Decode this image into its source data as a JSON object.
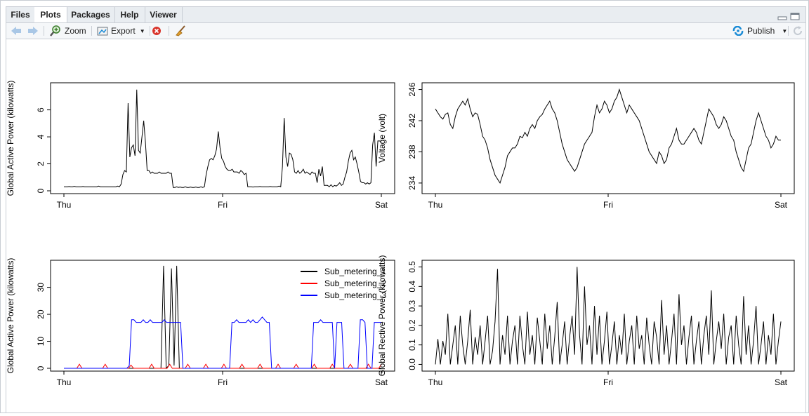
{
  "tabs": [
    {
      "label": "Files",
      "active": false
    },
    {
      "label": "Plots",
      "active": true
    },
    {
      "label": "Packages",
      "active": false
    },
    {
      "label": "Help",
      "active": false
    },
    {
      "label": "Viewer",
      "active": false
    }
  ],
  "toolbar": {
    "zoom_label": "Zoom",
    "export_label": "Export",
    "publish_label": "Publish",
    "icons": [
      "back-arrow-icon",
      "forward-arrow-icon",
      "zoom-icon",
      "export-icon",
      "remove-plot-icon",
      "broom-icon",
      "publish-icon",
      "refresh-icon"
    ]
  },
  "colors": {
    "sub1": "#000000",
    "sub2": "#ff0000",
    "sub3": "#0000ff",
    "accent": "#1a8bd6"
  },
  "chart_data": [
    {
      "type": "line",
      "ylabel": "Global Active Power (kilowatts)",
      "xticks": [
        "Thu",
        "Fri",
        "Sat"
      ],
      "yticks": [
        0,
        2,
        4,
        6
      ],
      "ylim": [
        0,
        7.8
      ],
      "series": [
        {
          "values": [
            0.3,
            0.3,
            0.3,
            0.32,
            0.3,
            0.3,
            0.33,
            0.3,
            0.3,
            0.3,
            0.3,
            0.32,
            0.3,
            0.3,
            0.3,
            0.3,
            0.3,
            0.3,
            0.3,
            0.3,
            0.35,
            0.3,
            0.3,
            0.3,
            0.3,
            0.3,
            0.3,
            0.3,
            0.3,
            0.3,
            0.3,
            0.35,
            0.3,
            0.5,
            1.2,
            1.5,
            1.4,
            6.5,
            2.5,
            3.2,
            3.4,
            2.6,
            7.5,
            3.0,
            2.8,
            4.0,
            5.2,
            3.6,
            1.5,
            1.5,
            1.3,
            1.4,
            1.3,
            1.3,
            1.3,
            1.4,
            1.3,
            1.3,
            1.3,
            1.3,
            1.4,
            1.3,
            1.3,
            0.25,
            0.25,
            0.3,
            0.25,
            0.28,
            0.25,
            0.25,
            0.3,
            0.25,
            0.25,
            0.28,
            0.25,
            0.25,
            0.28,
            0.25,
            0.25,
            0.3,
            0.25,
            0.3,
            1.2,
            1.8,
            2.3,
            2.4,
            2.3,
            2.6,
            3.1,
            4.4,
            3.2,
            2.4,
            2.2,
            1.8,
            1.6,
            1.5,
            1.5,
            1.6,
            1.4,
            1.4,
            1.4,
            1.3,
            1.5,
            1.4,
            1.2,
            1.3,
            0.3,
            0.3,
            0.3,
            0.28,
            0.3,
            0.3,
            0.3,
            0.32,
            0.3,
            0.3,
            0.3,
            0.3,
            0.3,
            0.32,
            0.3,
            0.3,
            0.3,
            0.3,
            0.35,
            0.3,
            1.8,
            5.4,
            2.5,
            1.8,
            2.8,
            2.7,
            2.3,
            1.4,
            1.3,
            1.5,
            1.3,
            1.4,
            1.6,
            1.3,
            1.4,
            1.3,
            1.2,
            1.4,
            1.3,
            1.3,
            0.6,
            1.6,
            1.1,
            1.8,
            0.4,
            0.4,
            0.4,
            0.3,
            0.45,
            0.3,
            0.4,
            0.35,
            0.45,
            0.6,
            0.4,
            0.5,
            1.0,
            1.4,
            2.2,
            2.8,
            3.0,
            2.3,
            2.5,
            2.0,
            1.4,
            0.7,
            0.6,
            0.6,
            0.5,
            0.6,
            0.5,
            0.6,
            3.4,
            4.3,
            1.8,
            3.7,
            3.7,
            3.6
          ]
        }
      ]
    },
    {
      "type": "line",
      "ylabel": "Voltage (volt)",
      "xticks": [
        "Thu",
        "Fri",
        "Sat"
      ],
      "yticks": [
        234,
        238,
        242,
        246
      ],
      "ylim": [
        233,
        246.5
      ],
      "series": [
        {
          "values": [
            243.5,
            243.0,
            242.5,
            242.2,
            242.8,
            243.0,
            241.5,
            241.0,
            242.5,
            243.5,
            244.0,
            244.5,
            244.0,
            244.8,
            243.5,
            242.5,
            243.0,
            242.8,
            241.5,
            240.0,
            239.5,
            238.5,
            237.0,
            236.0,
            235.0,
            234.5,
            234.0,
            235.0,
            236.0,
            237.5,
            238.0,
            238.5,
            238.5,
            239.0,
            240.0,
            239.8,
            240.5,
            240.0,
            241.0,
            241.5,
            241.0,
            242.0,
            242.5,
            242.8,
            243.5,
            244.0,
            244.5,
            243.5,
            243.0,
            242.0,
            240.5,
            239.0,
            238.0,
            237.0,
            236.5,
            236.0,
            235.5,
            236.0,
            237.0,
            238.0,
            239.0,
            239.5,
            240.0,
            240.5,
            242.5,
            244.0,
            243.0,
            243.5,
            244.5,
            244.0,
            243.0,
            243.5,
            244.5,
            245.0,
            246.0,
            245.0,
            244.0,
            243.0,
            244.0,
            243.5,
            243.0,
            242.5,
            242.0,
            241.0,
            240.0,
            239.0,
            238.0,
            237.5,
            237.0,
            236.5,
            238.0,
            237.5,
            236.5,
            237.0,
            238.5,
            239.0,
            240.0,
            241.0,
            239.5,
            239.0,
            239.0,
            239.5,
            240.0,
            240.5,
            241.0,
            240.5,
            239.5,
            239.0,
            240.5,
            242.0,
            243.5,
            243.0,
            242.5,
            241.5,
            241.0,
            241.5,
            242.5,
            242.0,
            241.0,
            240.0,
            239.5,
            238.0,
            237.0,
            236.0,
            235.5,
            237.0,
            238.5,
            239.0,
            240.5,
            242.0,
            243.0,
            242.0,
            241.0,
            240.0,
            239.5,
            238.5,
            239.0,
            240.0,
            239.5,
            239.5
          ]
        }
      ]
    },
    {
      "type": "line",
      "ylabel": "Global Active Power (kilowatts)",
      "xticks": [
        "Thu",
        "Fri",
        "Sat"
      ],
      "yticks": [
        0,
        10,
        20,
        30
      ],
      "ylim": [
        0,
        39
      ],
      "legend": [
        "Sub_metering_1",
        "Sub_metering_2",
        "Sub_metering_3"
      ],
      "legend_position": "top-right",
      "series": [
        {
          "name": "Sub_metering_1",
          "values": [
            0,
            0,
            0,
            0,
            0,
            0,
            0,
            0,
            0,
            0,
            0,
            0,
            0,
            0,
            0,
            0,
            0,
            0,
            0,
            0,
            0,
            0,
            0,
            0,
            0,
            0,
            0,
            0,
            0,
            0,
            0,
            0,
            0,
            0,
            0,
            0,
            0,
            0,
            38,
            0,
            1,
            37,
            1,
            38,
            0,
            0,
            0,
            0,
            0,
            0,
            0,
            0,
            0,
            0,
            0,
            0,
            0,
            0,
            0,
            0,
            0,
            0,
            0,
            0,
            0,
            0,
            0,
            0,
            0,
            0,
            0,
            0,
            0,
            0,
            0,
            0,
            0,
            0,
            0,
            0,
            0,
            0,
            0,
            0,
            0,
            0,
            0,
            0,
            0,
            0,
            0,
            0,
            0,
            0,
            0,
            0,
            0,
            0,
            0,
            0,
            0,
            0,
            0,
            0,
            0,
            0,
            0,
            0,
            0,
            0,
            0,
            0,
            0,
            0,
            0,
            0,
            0,
            0,
            0,
            0,
            0,
            0
          ]
        },
        {
          "name": "Sub_metering_2",
          "values": [
            0,
            0,
            0,
            0,
            0,
            0,
            1.5,
            0,
            0,
            0,
            0,
            0,
            0,
            0,
            0,
            0,
            1.5,
            0,
            0,
            0,
            0,
            0,
            0,
            0,
            0,
            0,
            1.2,
            0,
            0,
            0,
            0,
            0,
            0,
            0,
            1.5,
            0,
            0,
            0,
            0,
            0,
            0,
            1.5,
            0,
            0,
            0,
            0,
            0,
            0,
            1.5,
            0,
            0,
            0,
            0,
            0,
            0,
            1.5,
            0,
            0,
            0,
            0,
            0,
            0,
            1.5,
            0,
            0,
            0,
            0,
            0,
            0,
            1.5,
            0,
            0,
            0,
            0,
            0,
            0,
            1.5,
            0,
            0,
            0,
            0,
            0,
            0,
            1.5,
            0,
            0,
            0,
            0,
            0,
            0,
            1.5,
            0,
            0,
            0,
            0,
            0,
            0,
            1.5,
            0,
            0,
            0,
            0,
            0,
            0,
            1.5,
            0,
            0,
            0,
            0,
            0,
            0,
            1.5,
            0,
            0,
            0,
            0,
            0,
            0,
            1.5,
            0,
            0,
            0,
            0,
            1.5
          ]
        },
        {
          "name": "Sub_metering_3",
          "values": [
            0,
            0,
            0,
            0,
            0,
            0,
            0,
            0,
            0,
            0,
            0,
            0,
            0,
            0,
            0,
            0,
            0,
            0,
            0,
            0,
            0,
            0,
            0,
            0,
            0,
            0,
            0,
            0,
            1,
            18,
            18,
            17,
            17,
            17,
            18,
            17,
            17,
            18,
            17,
            17,
            17,
            17,
            17,
            18,
            17,
            17,
            17,
            17,
            17,
            17,
            17,
            0,
            0,
            0,
            0,
            0,
            0,
            0,
            0,
            0,
            0,
            0,
            0,
            0,
            0,
            0,
            0,
            0,
            0,
            0,
            0,
            0,
            17,
            17,
            18,
            17,
            17,
            17,
            17,
            18,
            17,
            18,
            17,
            17,
            18,
            19,
            18,
            17,
            17,
            0,
            0,
            0,
            0,
            0,
            0,
            0,
            0,
            0,
            0,
            0,
            0,
            0,
            0,
            0,
            0,
            0,
            0,
            17,
            17,
            17,
            18,
            17,
            17,
            17,
            17,
            17,
            0,
            17,
            17,
            17,
            0,
            0,
            0,
            0,
            0,
            0,
            0,
            18,
            18,
            17,
            0,
            0,
            0,
            17,
            17,
            17,
            17
          ]
        }
      ]
    },
    {
      "type": "line",
      "ylabel": "Global Rective Power (kilowatts)",
      "xticks": [
        "Thu",
        "Fri",
        "Sat"
      ],
      "yticks": [
        0.0,
        0.1,
        0.2,
        0.3,
        0.4,
        0.5
      ],
      "ylim": [
        -0.02,
        0.52
      ],
      "series": [
        {
          "values": [
            0,
            0.13,
            0,
            0.12,
            0.05,
            0.26,
            0,
            0.1,
            0.2,
            0,
            0.25,
            0.1,
            0,
            0.12,
            0.28,
            0,
            0.14,
            0.05,
            0.2,
            0,
            0.12,
            0.25,
            0,
            0.07,
            0.22,
            0.49,
            0,
            0.15,
            0.05,
            0.25,
            0,
            0.12,
            0.2,
            0,
            0.25,
            0.1,
            0,
            0.27,
            0.05,
            0.15,
            0,
            0.24,
            0.12,
            0,
            0.26,
            0.08,
            0.2,
            0,
            0.14,
            0.32,
            0,
            0.1,
            0.22,
            0,
            0.14,
            0.25,
            0.05,
            0.5,
            0.15,
            0,
            0.4,
            0.1,
            0.2,
            0,
            0.3,
            0.05,
            0.25,
            0,
            0.12,
            0.27,
            0,
            0.1,
            0.22,
            0,
            0.15,
            0.05,
            0.26,
            0,
            0.12,
            0.2,
            0,
            0.25,
            0.08,
            0.15,
            0,
            0.24,
            0.1,
            0,
            0.22,
            0.14,
            0,
            0.33,
            0.05,
            0.2,
            0,
            0.12,
            0.26,
            0,
            0.36,
            0.1,
            0.2,
            0,
            0.14,
            0.25,
            0,
            0.12,
            0.22,
            0,
            0.15,
            0.25,
            0.05,
            0.38,
            0,
            0.12,
            0.22,
            0.08,
            0.26,
            0,
            0.14,
            0.2,
            0,
            0.25,
            0.1,
            0,
            0.35,
            0.05,
            0.2,
            0,
            0.12,
            0.3,
            0,
            0.1,
            0.22,
            0,
            0.15,
            0.05,
            0.26,
            0,
            0.12,
            0.22
          ]
        }
      ]
    }
  ]
}
